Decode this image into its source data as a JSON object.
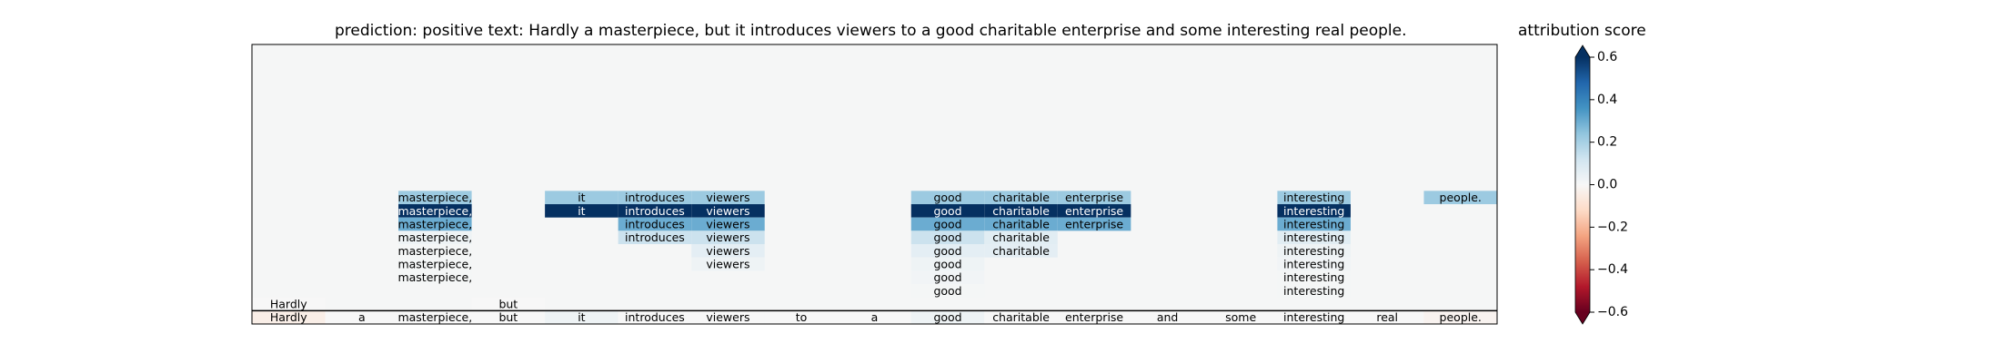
{
  "chart_data": {
    "type": "heatmap",
    "title": "prediction:  positive     text:  Hardly a masterpiece, but it introduces viewers to a good charitable enterprise and some interesting real people.",
    "tokens": [
      "Hardly",
      "a",
      "masterpiece,",
      "but",
      "it",
      "introduces",
      "viewers",
      "to",
      "a",
      "good",
      "charitable",
      "enterprise",
      "and",
      "some",
      "interesting",
      "real",
      "people."
    ],
    "rows": [
      {
        "cells": [
          [
            2,
            0.22
          ],
          [
            4,
            0.22
          ],
          [
            5,
            0.22
          ],
          [
            6,
            0.22
          ],
          [
            9,
            0.22
          ],
          [
            10,
            0.22
          ],
          [
            11,
            0.22
          ],
          [
            14,
            0.22
          ],
          [
            16,
            0.22
          ]
        ]
      },
      {
        "cells": [
          [
            2,
            0.6
          ],
          [
            4,
            0.6
          ],
          [
            5,
            0.6
          ],
          [
            6,
            0.6
          ],
          [
            9,
            0.6
          ],
          [
            10,
            0.6
          ],
          [
            11,
            0.6
          ],
          [
            14,
            0.6
          ]
        ]
      },
      {
        "cells": [
          [
            2,
            0.3
          ],
          [
            5,
            0.3
          ],
          [
            6,
            0.3
          ],
          [
            9,
            0.3
          ],
          [
            10,
            0.3
          ],
          [
            11,
            0.3
          ],
          [
            14,
            0.3
          ]
        ]
      },
      {
        "cells": [
          [
            2,
            0.03
          ],
          [
            5,
            0.13
          ],
          [
            6,
            0.13
          ],
          [
            9,
            0.13
          ],
          [
            10,
            0.07
          ],
          [
            14,
            0.07
          ]
        ]
      },
      {
        "cells": [
          [
            2,
            0.01
          ],
          [
            6,
            0.06
          ],
          [
            9,
            0.06
          ],
          [
            10,
            0.06
          ],
          [
            14,
            0.03
          ]
        ]
      },
      {
        "cells": [
          [
            2,
            0.01
          ],
          [
            6,
            0.03
          ],
          [
            9,
            0.03
          ],
          [
            14,
            0.02
          ]
        ]
      },
      {
        "cells": [
          [
            2,
            0.01
          ],
          [
            9,
            0.02
          ],
          [
            14,
            0.01
          ]
        ]
      },
      {
        "cells": [
          [
            9,
            0.01
          ],
          [
            14,
            0.01
          ]
        ]
      },
      {
        "cells": [
          [
            0,
            0.0
          ],
          [
            3,
            0.0
          ]
        ]
      },
      {
        "cells": [
          [
            0,
            -0.04
          ],
          [
            1,
            0.0
          ],
          [
            2,
            0.0
          ],
          [
            3,
            0.0
          ],
          [
            4,
            0.03
          ],
          [
            5,
            0.0
          ],
          [
            6,
            0.0
          ],
          [
            7,
            0.0
          ],
          [
            8,
            0.0
          ],
          [
            9,
            0.03
          ],
          [
            10,
            0.0
          ],
          [
            11,
            0.0
          ],
          [
            12,
            0.0
          ],
          [
            13,
            0.0
          ],
          [
            14,
            0.0
          ],
          [
            15,
            0.0
          ],
          [
            16,
            -0.02
          ]
        ]
      }
    ],
    "colorbar": {
      "label": "attribution score",
      "range": [
        -0.6,
        0.6
      ],
      "ticks": [
        "0.6",
        "0.4",
        "0.2",
        "0.0",
        "−0.2",
        "−0.4",
        "−0.6"
      ],
      "colormap": "RdBu"
    },
    "plot_background": "#f5f6f6"
  }
}
